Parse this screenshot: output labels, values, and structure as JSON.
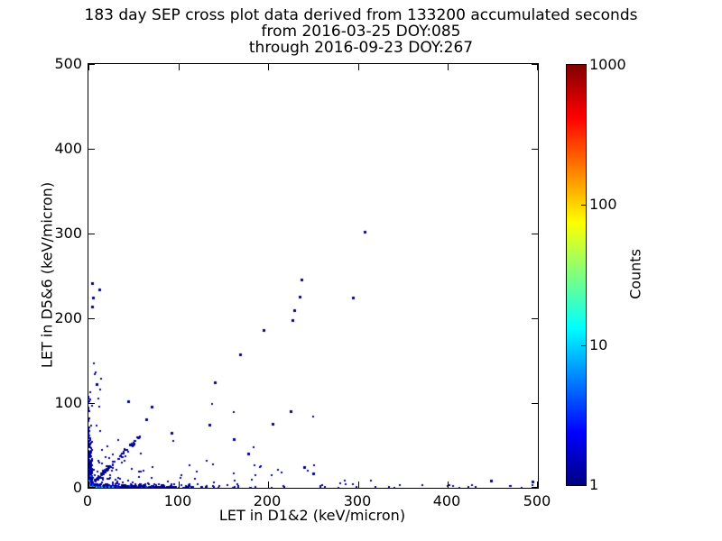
{
  "figure": {
    "title_lines": [
      "183 day SEP cross plot data derived from 133200 accumulated seconds",
      "from 2016-03-25 DOY:085",
      "through 2016-09-23 DOY:267"
    ],
    "background_color": "#ffffff",
    "frame_color": "#000000"
  },
  "chart_data": {
    "type": "scatter",
    "title": "183 day SEP cross plot data derived from 133200 accumulated seconds",
    "subtitle_lines": [
      "from 2016-03-25 DOY:085",
      "through 2016-09-23 DOY:267"
    ],
    "xlabel": "LET in D1&2 (keV/micron)",
    "ylabel": "LET in D5&6 (keV/micron)",
    "xlim": [
      0,
      500
    ],
    "ylim": [
      0,
      500
    ],
    "xticks": [
      0,
      100,
      200,
      300,
      400,
      500
    ],
    "yticks": [
      0,
      100,
      200,
      300,
      400,
      500
    ],
    "grid": false,
    "legend": "none",
    "point_base_color": "#000085",
    "colorbar": {
      "label": "Counts",
      "scale": "log",
      "range": [
        1,
        1000
      ],
      "ticks": [
        1,
        10,
        100,
        1000
      ],
      "colormap": "jet",
      "stops": [
        [
          0,
          "#000080"
        ],
        [
          12.5,
          "#0000ff"
        ],
        [
          37.5,
          "#00ffff"
        ],
        [
          62.5,
          "#ffff00"
        ],
        [
          87.5,
          "#ff0000"
        ],
        [
          100,
          "#800000"
        ]
      ]
    },
    "seed": 42,
    "clusters": [
      {
        "name": "bottom-edge-dense-band",
        "kind": "band",
        "n": 480,
        "x": {
          "dist": "exp",
          "mean": 40,
          "max": 258
        },
        "y": {
          "dist": "exp",
          "mean": 1.3,
          "max": 4.5
        },
        "color": "mix",
        "size": 2
      },
      {
        "name": "bottom-edge-sparse-band",
        "kind": "band",
        "n": 26,
        "x": {
          "dist": "uniform",
          "min": 258,
          "max": 495
        },
        "y": {
          "dist": "exp",
          "mean": 2.5,
          "max": 8
        },
        "color": "base",
        "size": 2
      },
      {
        "name": "left-edge-dense-band",
        "kind": "band",
        "n": 280,
        "x": {
          "dist": "exp",
          "mean": 1.3,
          "max": 4.5
        },
        "y": {
          "dist": "exp",
          "mean": 24,
          "max": 122
        },
        "color": "mix",
        "size": 2
      },
      {
        "name": "origin-diagonal-band",
        "kind": "diag",
        "n": 95,
        "tmean": 25,
        "tmax": 56,
        "slope": 1.05,
        "jitter": 2.2,
        "color": "mix",
        "size": 2
      },
      {
        "name": "diagonal-blob",
        "kind": "blob",
        "n": 16,
        "cx": 49,
        "cy": 51,
        "r": 2.5,
        "color": "mix",
        "size": 2
      },
      {
        "name": "near-origin-triangle-scatter",
        "kind": "band",
        "n": 95,
        "x": {
          "dist": "exp",
          "mean": 35,
          "max": 112
        },
        "y": {
          "dist": "exp",
          "mean": 20,
          "max": 95
        },
        "color": "base",
        "size": 2
      },
      {
        "name": "mid-low-scatter",
        "kind": "band",
        "n": 24,
        "x": {
          "dist": "uniform",
          "min": 112,
          "max": 258
        },
        "y": {
          "dist": "exp",
          "mean": 30,
          "max": 102
        },
        "color": "base",
        "size": 2
      },
      {
        "name": "left-arm-scatter",
        "kind": "band",
        "n": 7,
        "x": {
          "dist": "uniform",
          "min": 3,
          "max": 16
        },
        "y": {
          "dist": "uniform",
          "min": 92,
          "max": 150
        },
        "color": "base",
        "size": 2
      }
    ],
    "hot_points": [
      [
        0.8,
        0.8,
        "#9bd400"
      ],
      [
        2.2,
        0.8,
        "#44c820"
      ],
      [
        0.8,
        2.2,
        "#2fbf3a"
      ],
      [
        4.0,
        0.8,
        "#00c8f0"
      ],
      [
        0.8,
        4.2,
        "#00c0f0"
      ],
      [
        6.5,
        0.8,
        "#00a8ff"
      ],
      [
        0.8,
        6.5,
        "#0090ff"
      ],
      [
        9.0,
        0.8,
        "#00c0ff"
      ],
      [
        12.0,
        0.8,
        "#0080ff"
      ],
      [
        15.0,
        0.8,
        "#00b0ff"
      ],
      [
        19.0,
        0.8,
        "#0060ff"
      ],
      [
        23.0,
        0.8,
        "#00a0e8"
      ],
      [
        1.0,
        9.0,
        "#0070ff"
      ],
      [
        2.0,
        5.0,
        "#0048ff"
      ],
      [
        5.0,
        2.0,
        "#0060ff"
      ],
      [
        27.0,
        0.8,
        "#00b4d8"
      ],
      [
        2.0,
        14.0,
        "#0050e0"
      ]
    ],
    "outlier_points": [
      [
        307,
        302
      ],
      [
        294,
        225
      ],
      [
        237,
        246
      ],
      [
        235,
        226
      ],
      [
        229,
        210
      ],
      [
        227,
        198
      ],
      [
        195,
        186
      ],
      [
        169,
        157
      ],
      [
        141,
        125
      ],
      [
        44,
        102
      ],
      [
        70,
        96
      ],
      [
        64,
        81
      ],
      [
        92,
        65
      ],
      [
        4,
        241
      ],
      [
        12,
        234
      ],
      [
        5,
        225
      ],
      [
        4,
        214
      ],
      [
        9,
        122
      ],
      [
        240,
        25
      ],
      [
        250,
        17
      ],
      [
        448,
        8
      ],
      [
        494,
        7
      ],
      [
        135,
        75
      ],
      [
        205,
        76
      ],
      [
        162,
        57
      ],
      [
        178,
        40
      ],
      [
        225,
        90
      ]
    ]
  }
}
